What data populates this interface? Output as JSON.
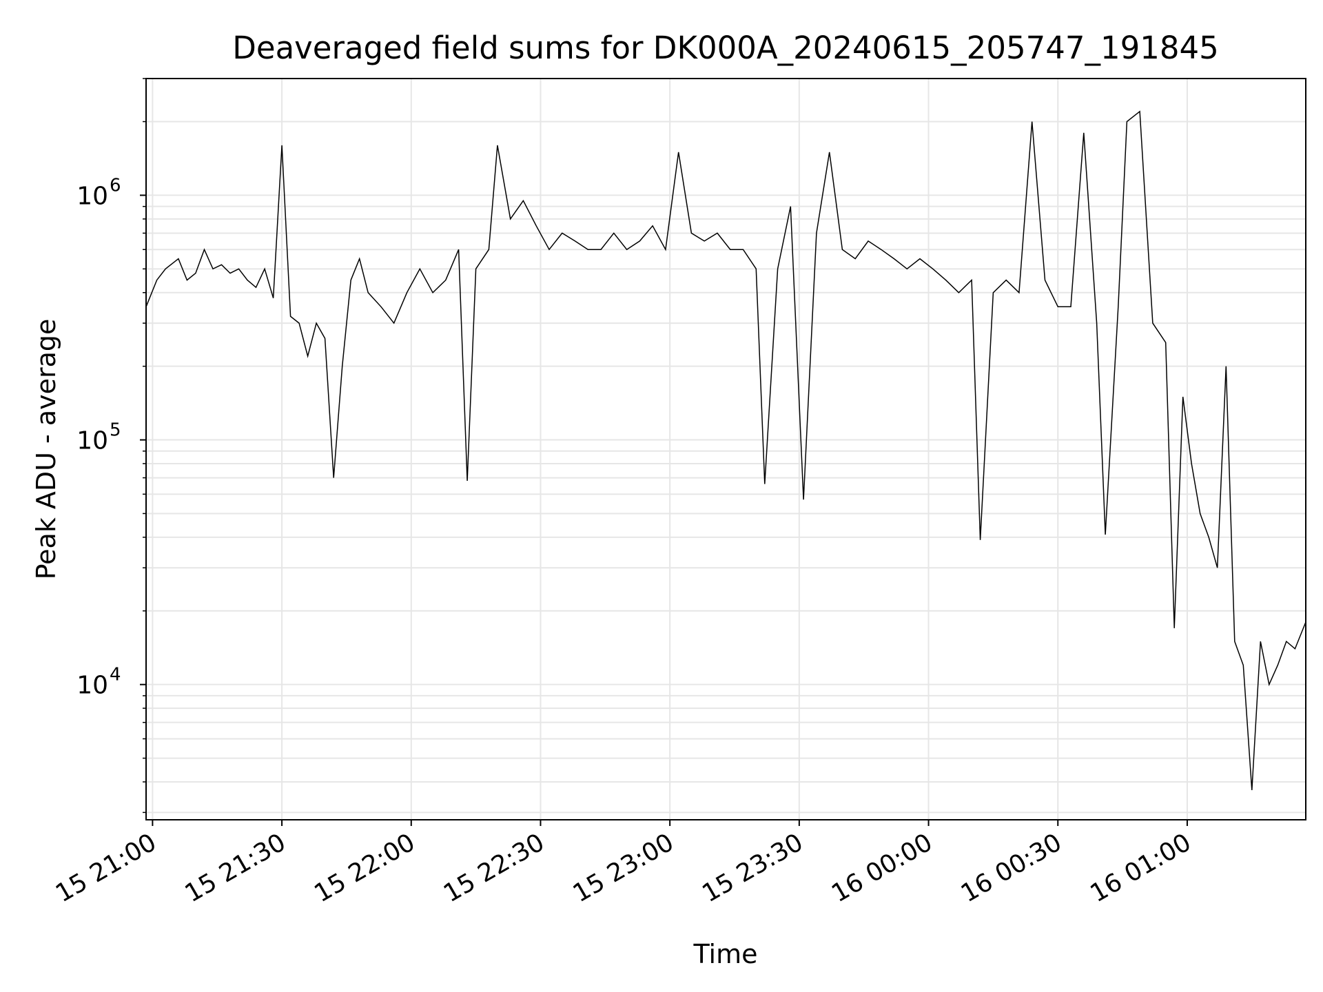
{
  "chart_data": {
    "type": "line",
    "title": "Deaveraged field sums for DK000A_20240615_205747_191845",
    "xlabel": "Time",
    "ylabel": "Peak ADU - average",
    "yscale": "log",
    "ylim": [
      2800,
      3000000
    ],
    "xlim": [
      "2024-06-15 20:58:30",
      "2024-06-16 01:27:30"
    ],
    "grid": "both",
    "x_ticks": [
      {
        "time": "2024-06-15 21:00:00",
        "label": "15 21:00"
      },
      {
        "time": "2024-06-15 21:30:00",
        "label": "15 21:30"
      },
      {
        "time": "2024-06-15 22:00:00",
        "label": "15 22:00"
      },
      {
        "time": "2024-06-15 22:30:00",
        "label": "15 22:30"
      },
      {
        "time": "2024-06-15 23:00:00",
        "label": "15 23:00"
      },
      {
        "time": "2024-06-15 23:30:00",
        "label": "15 23:30"
      },
      {
        "time": "2024-06-16 00:00:00",
        "label": "16 00:00"
      },
      {
        "time": "2024-06-16 00:30:00",
        "label": "16 00:30"
      },
      {
        "time": "2024-06-16 01:00:00",
        "label": "16 01:00"
      }
    ],
    "y_ticks": [
      {
        "value": 10000,
        "base": "10",
        "exp": "4"
      },
      {
        "value": 100000,
        "base": "10",
        "exp": "5"
      },
      {
        "value": 1000000,
        "base": "10",
        "exp": "6"
      }
    ],
    "series": [
      {
        "color": "#000000",
        "points": [
          [
            "2024-06-15 20:58:30",
            350000
          ],
          [
            "2024-06-15 21:01:00",
            450000
          ],
          [
            "2024-06-15 21:03:00",
            500000
          ],
          [
            "2024-06-15 21:06:00",
            550000
          ],
          [
            "2024-06-15 21:08:00",
            450000
          ],
          [
            "2024-06-15 21:10:00",
            480000
          ],
          [
            "2024-06-15 21:12:00",
            600000
          ],
          [
            "2024-06-15 21:14:00",
            500000
          ],
          [
            "2024-06-15 21:16:00",
            520000
          ],
          [
            "2024-06-15 21:18:00",
            480000
          ],
          [
            "2024-06-15 21:20:00",
            500000
          ],
          [
            "2024-06-15 21:22:00",
            450000
          ],
          [
            "2024-06-15 21:24:00",
            420000
          ],
          [
            "2024-06-15 21:26:00",
            500000
          ],
          [
            "2024-06-15 21:28:00",
            380000
          ],
          [
            "2024-06-15 21:30:00",
            1600000
          ],
          [
            "2024-06-15 21:32:00",
            320000
          ],
          [
            "2024-06-15 21:34:00",
            300000
          ],
          [
            "2024-06-15 21:36:00",
            220000
          ],
          [
            "2024-06-15 21:38:00",
            300000
          ],
          [
            "2024-06-15 21:40:00",
            260000
          ],
          [
            "2024-06-15 21:42:00",
            70000
          ],
          [
            "2024-06-15 21:44:00",
            200000
          ],
          [
            "2024-06-15 21:46:00",
            450000
          ],
          [
            "2024-06-15 21:48:00",
            550000
          ],
          [
            "2024-06-15 21:50:00",
            400000
          ],
          [
            "2024-06-15 21:53:00",
            350000
          ],
          [
            "2024-06-15 21:56:00",
            300000
          ],
          [
            "2024-06-15 21:59:00",
            400000
          ],
          [
            "2024-06-15 22:02:00",
            500000
          ],
          [
            "2024-06-15 22:05:00",
            400000
          ],
          [
            "2024-06-15 22:08:00",
            450000
          ],
          [
            "2024-06-15 22:11:00",
            600000
          ],
          [
            "2024-06-15 22:13:00",
            68000
          ],
          [
            "2024-06-15 22:15:00",
            500000
          ],
          [
            "2024-06-15 22:18:00",
            600000
          ],
          [
            "2024-06-15 22:20:00",
            1600000
          ],
          [
            "2024-06-15 22:23:00",
            800000
          ],
          [
            "2024-06-15 22:26:00",
            950000
          ],
          [
            "2024-06-15 22:29:00",
            750000
          ],
          [
            "2024-06-15 22:32:00",
            600000
          ],
          [
            "2024-06-15 22:35:00",
            700000
          ],
          [
            "2024-06-15 22:38:00",
            650000
          ],
          [
            "2024-06-15 22:41:00",
            600000
          ],
          [
            "2024-06-15 22:44:00",
            600000
          ],
          [
            "2024-06-15 22:47:00",
            700000
          ],
          [
            "2024-06-15 22:50:00",
            600000
          ],
          [
            "2024-06-15 22:53:00",
            650000
          ],
          [
            "2024-06-15 22:56:00",
            750000
          ],
          [
            "2024-06-15 22:59:00",
            600000
          ],
          [
            "2024-06-15 23:02:00",
            1500000
          ],
          [
            "2024-06-15 23:05:00",
            700000
          ],
          [
            "2024-06-15 23:08:00",
            650000
          ],
          [
            "2024-06-15 23:11:00",
            700000
          ],
          [
            "2024-06-15 23:14:00",
            600000
          ],
          [
            "2024-06-15 23:17:00",
            600000
          ],
          [
            "2024-06-15 23:20:00",
            500000
          ],
          [
            "2024-06-15 23:22:00",
            66000
          ],
          [
            "2024-06-15 23:25:00",
            500000
          ],
          [
            "2024-06-15 23:28:00",
            900000
          ],
          [
            "2024-06-15 23:31:00",
            57000
          ],
          [
            "2024-06-15 23:34:00",
            700000
          ],
          [
            "2024-06-15 23:37:00",
            1500000
          ],
          [
            "2024-06-15 23:40:00",
            600000
          ],
          [
            "2024-06-15 23:43:00",
            550000
          ],
          [
            "2024-06-15 23:46:00",
            650000
          ],
          [
            "2024-06-15 23:49:00",
            600000
          ],
          [
            "2024-06-15 23:52:00",
            550000
          ],
          [
            "2024-06-15 23:55:00",
            500000
          ],
          [
            "2024-06-15 23:58:00",
            550000
          ],
          [
            "2024-06-16 00:01:00",
            500000
          ],
          [
            "2024-06-16 00:04:00",
            450000
          ],
          [
            "2024-06-16 00:07:00",
            400000
          ],
          [
            "2024-06-16 00:10:00",
            450000
          ],
          [
            "2024-06-16 00:12:00",
            39000
          ],
          [
            "2024-06-16 00:15:00",
            400000
          ],
          [
            "2024-06-16 00:18:00",
            450000
          ],
          [
            "2024-06-16 00:21:00",
            400000
          ],
          [
            "2024-06-16 00:24:00",
            2000000
          ],
          [
            "2024-06-16 00:27:00",
            450000
          ],
          [
            "2024-06-16 00:30:00",
            350000
          ],
          [
            "2024-06-16 00:33:00",
            350000
          ],
          [
            "2024-06-16 00:36:00",
            1800000
          ],
          [
            "2024-06-16 00:39:00",
            300000
          ],
          [
            "2024-06-16 00:41:00",
            41000
          ],
          [
            "2024-06-16 00:44:00",
            350000
          ],
          [
            "2024-06-16 00:46:00",
            2000000
          ],
          [
            "2024-06-16 00:49:00",
            2200000
          ],
          [
            "2024-06-16 00:52:00",
            300000
          ],
          [
            "2024-06-16 00:55:00",
            250000
          ],
          [
            "2024-06-16 00:57:00",
            17000
          ],
          [
            "2024-06-16 00:59:00",
            150000
          ],
          [
            "2024-06-16 01:01:00",
            80000
          ],
          [
            "2024-06-16 01:03:00",
            50000
          ],
          [
            "2024-06-16 01:05:00",
            40000
          ],
          [
            "2024-06-16 01:07:00",
            30000
          ],
          [
            "2024-06-16 01:09:00",
            200000
          ],
          [
            "2024-06-16 01:11:00",
            15000
          ],
          [
            "2024-06-16 01:13:00",
            12000
          ],
          [
            "2024-06-16 01:15:00",
            3700
          ],
          [
            "2024-06-16 01:17:00",
            15000
          ],
          [
            "2024-06-16 01:19:00",
            10000
          ],
          [
            "2024-06-16 01:21:00",
            12000
          ],
          [
            "2024-06-16 01:23:00",
            15000
          ],
          [
            "2024-06-16 01:25:00",
            14000
          ],
          [
            "2024-06-16 01:27:30",
            18000
          ]
        ]
      }
    ]
  }
}
